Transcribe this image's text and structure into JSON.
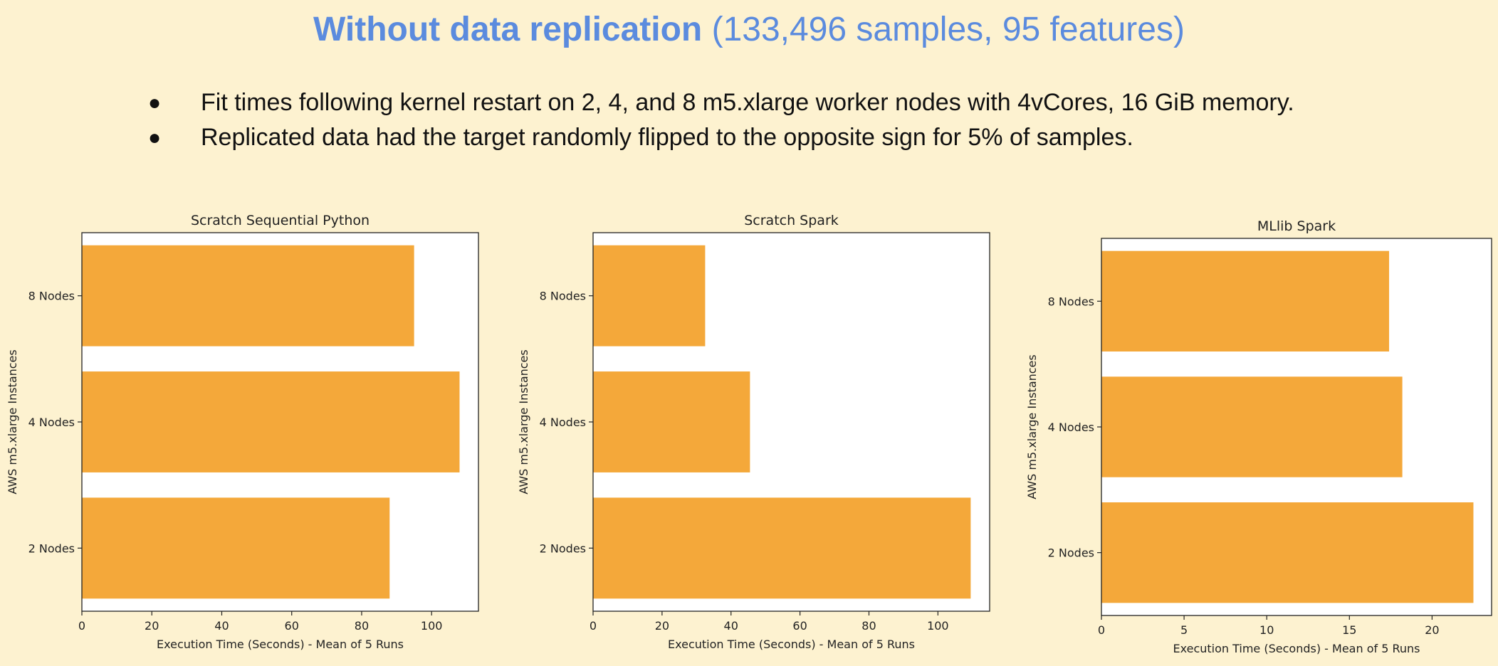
{
  "header": {
    "title_bold": "Without data replication",
    "title_rest": " (133,496 samples, 95 features)"
  },
  "bullets": [
    "Fit times following kernel restart on 2, 4, and 8 m5.xlarge worker nodes with 4vCores, 16 GiB memory.",
    "Replicated data had the target randomly flipped to the opposite sign for 5% of samples."
  ],
  "bullet_glyph": "●",
  "colors": {
    "bar": "#f4a83a",
    "background": "#fdf2d0",
    "title": "#5b8bde"
  },
  "chart_data": [
    {
      "type": "bar",
      "orientation": "horizontal",
      "title": "Scratch Sequential Python",
      "categories": [
        "2 Nodes",
        "4 Nodes",
        "8 Nodes"
      ],
      "values": [
        88,
        108,
        95
      ],
      "xlabel": "Execution Time (Seconds) - Mean of 5 Runs",
      "ylabel": "AWS m5.xlarge Instances",
      "xlim": [
        0,
        113.4
      ],
      "xticks": [
        0,
        20,
        40,
        60,
        80,
        100
      ],
      "grid": false
    },
    {
      "type": "bar",
      "orientation": "horizontal",
      "title": "Scratch Spark",
      "categories": [
        "2 Nodes",
        "4 Nodes",
        "8 Nodes"
      ],
      "values": [
        109.5,
        45.5,
        32.5
      ],
      "xlabel": "Execution Time (Seconds) - Mean of 5 Runs",
      "ylabel": "AWS m5.xlarge Instances",
      "xlim": [
        0,
        115
      ],
      "xticks": [
        0,
        20,
        40,
        60,
        80,
        100
      ],
      "grid": false
    },
    {
      "type": "bar",
      "orientation": "horizontal",
      "title": "MLlib Spark",
      "categories": [
        "2 Nodes",
        "4 Nodes",
        "8 Nodes"
      ],
      "values": [
        22.5,
        18.2,
        17.4
      ],
      "xlabel": "Execution Time (Seconds) - Mean of 5 Runs",
      "ylabel": "AWS m5.xlarge Instances",
      "xlim": [
        0,
        23.6
      ],
      "xticks": [
        0,
        5,
        10,
        15,
        20
      ],
      "grid": false
    }
  ]
}
